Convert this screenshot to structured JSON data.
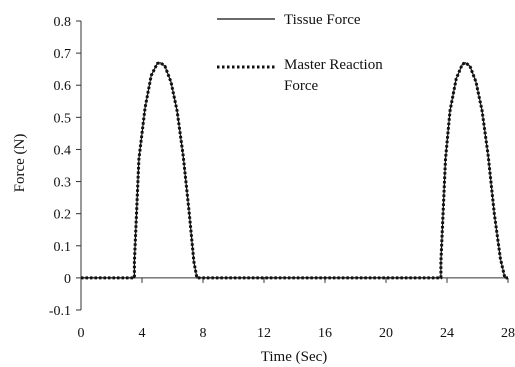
{
  "chart_data": {
    "type": "line",
    "title": "",
    "xlabel": "Time (Sec)",
    "ylabel": "Force (N)",
    "xlim": [
      0,
      28
    ],
    "ylim": [
      -0.1,
      0.8
    ],
    "xticks": [
      0,
      4,
      8,
      12,
      16,
      20,
      24,
      28
    ],
    "yticks": [
      -0.1,
      0,
      0.1,
      0.2,
      0.3,
      0.4,
      0.5,
      0.6,
      0.7,
      0.8
    ],
    "grid": false,
    "legend_position": "top-right",
    "series": [
      {
        "name": "Tissue Force",
        "style": "solid",
        "x": [
          0,
          3.5,
          3.5,
          3.8,
          4.2,
          4.6,
          5.0,
          5.2,
          5.5,
          5.9,
          6.3,
          6.7,
          7.1,
          7.4,
          7.6,
          23.6,
          23.6,
          23.9,
          24.2,
          24.6,
          25.0,
          25.2,
          25.5,
          25.9,
          26.3,
          26.7,
          27.1,
          27.5,
          27.8,
          28.0
        ],
        "y": [
          0,
          0,
          0.05,
          0.37,
          0.53,
          0.63,
          0.668,
          0.67,
          0.66,
          0.61,
          0.52,
          0.38,
          0.2,
          0.05,
          0,
          0,
          0.05,
          0.37,
          0.52,
          0.62,
          0.665,
          0.67,
          0.66,
          0.61,
          0.52,
          0.38,
          0.2,
          0.06,
          0,
          0
        ]
      },
      {
        "name": "Master Reaction Force",
        "style": "dotted",
        "x": [
          0,
          3.5,
          3.5,
          3.8,
          4.2,
          4.6,
          5.0,
          5.2,
          5.5,
          5.9,
          6.3,
          6.7,
          7.1,
          7.4,
          7.6,
          23.6,
          23.6,
          23.9,
          24.2,
          24.6,
          25.0,
          25.2,
          25.5,
          25.9,
          26.3,
          26.7,
          27.1,
          27.5,
          27.8,
          28.0
        ],
        "y": [
          0,
          0,
          0.05,
          0.37,
          0.53,
          0.63,
          0.668,
          0.67,
          0.66,
          0.61,
          0.52,
          0.38,
          0.2,
          0.05,
          0,
          0,
          0.05,
          0.37,
          0.52,
          0.62,
          0.665,
          0.67,
          0.66,
          0.61,
          0.52,
          0.38,
          0.2,
          0.06,
          0,
          0
        ]
      }
    ]
  },
  "legend": {
    "items": [
      {
        "line1": "Tissue Force",
        "line2": ""
      },
      {
        "line1": "Master Reaction",
        "line2": "Force"
      }
    ]
  },
  "colors": {
    "line": "#111111",
    "axis": "#333333"
  }
}
